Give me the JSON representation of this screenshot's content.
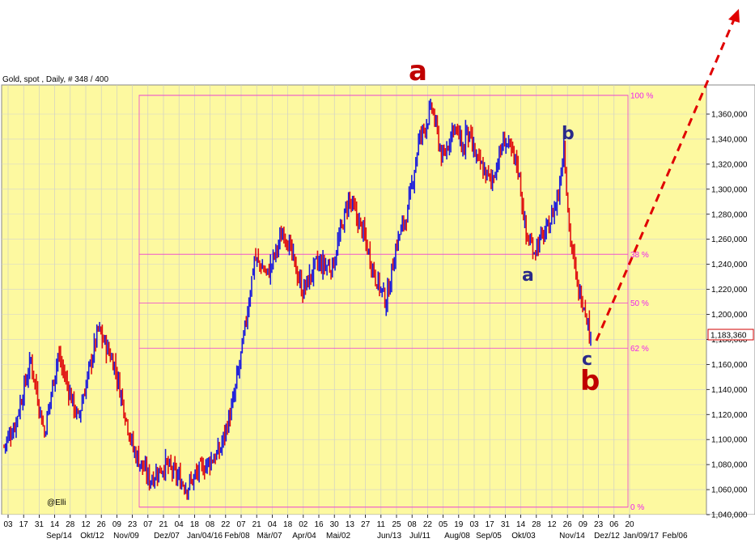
{
  "chart_data": {
    "type": "candlestick",
    "title": "Gold, spot , Daily, # 348 / 400",
    "watermark": "@Elli",
    "ylim": [
      1040000,
      1380000
    ],
    "y_ticks": [
      1040000,
      1060000,
      1080000,
      1100000,
      1120000,
      1140000,
      1160000,
      1180000,
      1200000,
      1220000,
      1240000,
      1260000,
      1280000,
      1300000,
      1320000,
      1340000,
      1360000
    ],
    "y_tick_labels": [
      "1,040,000",
      "1,060,000",
      "1,080,000",
      "1,100,000",
      "1,120,000",
      "1,140,000",
      "1,160,000",
      "1,180,000",
      "1,200,000",
      "1,220,000",
      "1,240,000",
      "1,260,000",
      "1,280,000",
      "1,300,000",
      "1,320,000",
      "1,340,000",
      "1,360,000"
    ],
    "day_labels": [
      "03",
      "17",
      "31",
      "14",
      "28",
      "12",
      "26",
      "09",
      "23",
      "07",
      "21",
      "04",
      "18",
      "08",
      "22",
      "07",
      "21",
      "04",
      "18",
      "02",
      "16",
      "30",
      "13",
      "27",
      "11",
      "25",
      "08",
      "22",
      "05",
      "19",
      "03",
      "17",
      "31",
      "14",
      "28",
      "12",
      "26",
      "09",
      "23",
      "06",
      "20"
    ],
    "month_labels": [
      "Sep/14",
      "Okt/12",
      "Nov/09",
      "Dez/07",
      "Jan/04/16",
      "Feb/08",
      "Mär/07",
      "Apr/04",
      "Mai/02",
      "Jun/13",
      "Jul/11",
      "Aug/08",
      "Sep/05",
      "Okt/03",
      "Nov/14",
      "Dez/12",
      "Jan/09/17",
      "Feb/06"
    ],
    "last_price_label": "1,183,360",
    "fib_levels": [
      {
        "label": "100 %",
        "value": 1375000
      },
      {
        "label": "38 %",
        "value": 1248000
      },
      {
        "label": "50 %",
        "value": 1209000
      },
      {
        "label": "62 %",
        "value": 1173000
      },
      {
        "label": "0 %",
        "value": 1046000
      }
    ],
    "wave_labels": {
      "major_a": "a",
      "major_b": "b",
      "minor_a": "a",
      "minor_b": "b",
      "minor_c": "c"
    },
    "price_path": [
      {
        "i": 0,
        "v": 1095000
      },
      {
        "i": 8,
        "v": 1112000
      },
      {
        "i": 20,
        "v": 1163000
      },
      {
        "i": 30,
        "v": 1105000
      },
      {
        "i": 40,
        "v": 1168000
      },
      {
        "i": 55,
        "v": 1116000
      },
      {
        "i": 70,
        "v": 1188000
      },
      {
        "i": 82,
        "v": 1160000
      },
      {
        "i": 96,
        "v": 1092000
      },
      {
        "i": 108,
        "v": 1068000
      },
      {
        "i": 120,
        "v": 1080000
      },
      {
        "i": 136,
        "v": 1062000
      },
      {
        "i": 145,
        "v": 1075000
      },
      {
        "i": 160,
        "v": 1090000
      },
      {
        "i": 170,
        "v": 1128000
      },
      {
        "i": 178,
        "v": 1180000
      },
      {
        "i": 186,
        "v": 1245000
      },
      {
        "i": 196,
        "v": 1232000
      },
      {
        "i": 208,
        "v": 1268000
      },
      {
        "i": 222,
        "v": 1218000
      },
      {
        "i": 232,
        "v": 1240000
      },
      {
        "i": 244,
        "v": 1238000
      },
      {
        "i": 256,
        "v": 1292000
      },
      {
        "i": 266,
        "v": 1268000
      },
      {
        "i": 276,
        "v": 1230000
      },
      {
        "i": 284,
        "v": 1210000
      },
      {
        "i": 292,
        "v": 1258000
      },
      {
        "i": 300,
        "v": 1282000
      },
      {
        "i": 308,
        "v": 1338000
      },
      {
        "i": 318,
        "v": 1365000
      },
      {
        "i": 326,
        "v": 1322000
      },
      {
        "i": 334,
        "v": 1352000
      },
      {
        "i": 342,
        "v": 1330000
      }
    ],
    "price_path_2": [
      {
        "day": 343,
        "v": 1348000
      },
      {
        "day": 352,
        "v": 1322000
      },
      {
        "day": 362,
        "v": 1306000
      },
      {
        "day": 372,
        "v": 1340000
      },
      {
        "day": 382,
        "v": 1318000
      },
      {
        "day": 388,
        "v": 1262000
      },
      {
        "day": 394,
        "v": 1252000
      },
      {
        "day": 404,
        "v": 1268000
      },
      {
        "day": 412,
        "v": 1296000
      },
      {
        "day": 416,
        "v": 1338000
      },
      {
        "day": 420,
        "v": 1268000
      },
      {
        "day": 426,
        "v": 1222000
      },
      {
        "day": 432,
        "v": 1206000
      },
      {
        "day": 436,
        "v": 1178000
      }
    ],
    "projection": [
      {
        "date": "end",
        "v": 1183360
      },
      {
        "date": "target",
        "v": 1420000
      }
    ]
  }
}
